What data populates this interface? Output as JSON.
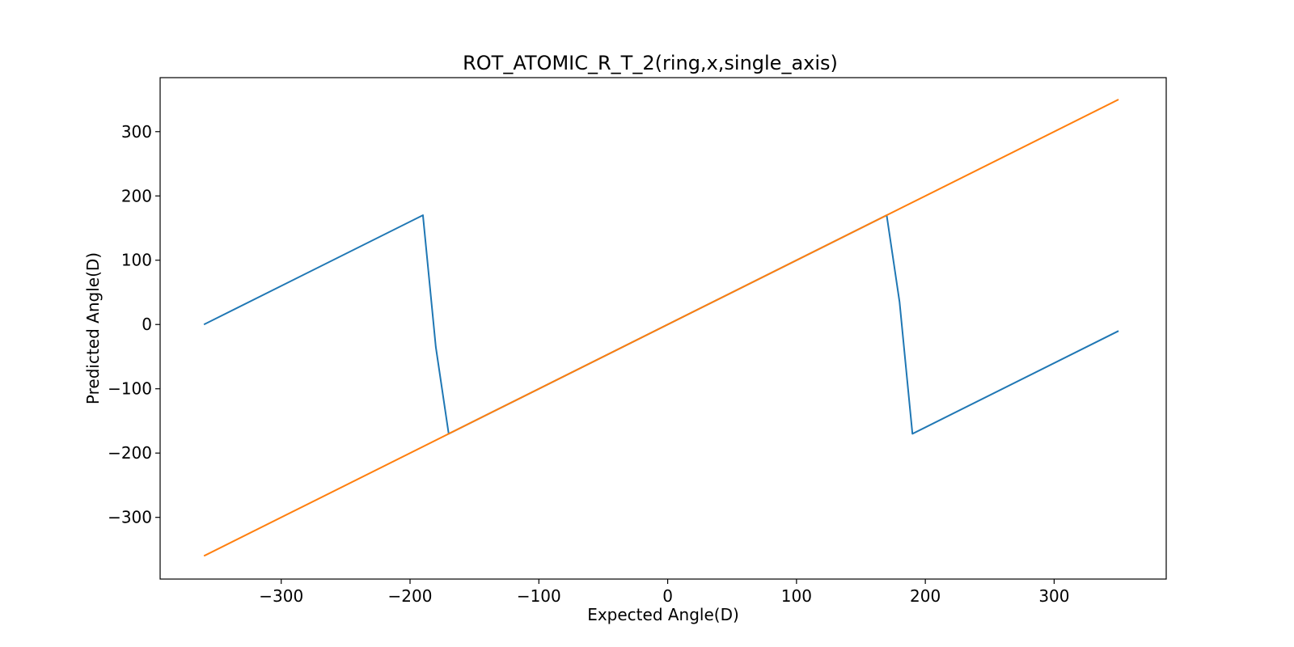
{
  "chart_data": {
    "type": "line",
    "title": "ROT_ATOMIC_R_T_2(ring,x,single_axis)",
    "xlabel": "Expected Angle(D)",
    "ylabel": "Predicted Angle(D)",
    "xlim": [
      -394,
      387
    ],
    "ylim": [
      -396,
      384
    ],
    "xticks": [
      -300,
      -200,
      -100,
      0,
      100,
      200,
      300
    ],
    "xtick_labels": [
      "−300",
      "−200",
      "−100",
      "0",
      "100",
      "200",
      "300"
    ],
    "yticks": [
      -300,
      -200,
      -100,
      0,
      100,
      200,
      300
    ],
    "ytick_labels": [
      "−300",
      "−200",
      "−100",
      "0",
      "100",
      "200",
      "300"
    ],
    "grid": false,
    "series": [
      {
        "color": "#1f77b4",
        "x": [
          -360,
          -190,
          -180,
          -170,
          170,
          180,
          190,
          350
        ],
        "y": [
          0,
          170,
          -35,
          -170,
          170,
          35,
          -170,
          -10
        ]
      },
      {
        "color": "#ff7f0e",
        "x": [
          -360,
          350
        ],
        "y": [
          -360,
          350
        ]
      }
    ]
  }
}
